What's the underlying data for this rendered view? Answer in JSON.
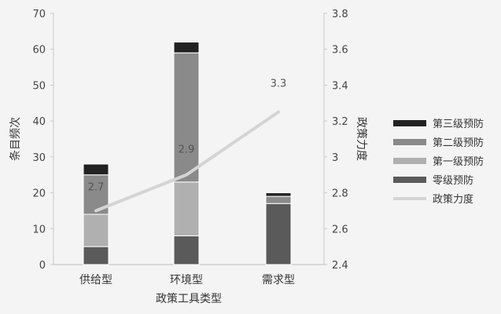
{
  "chart_data": {
    "type": "bar",
    "categories": [
      "供给型",
      "环境型",
      "需求型"
    ],
    "xlabel": "政策工具类型",
    "ylabel_left": "条目频次",
    "ylabel_right": "政策力度",
    "ylim_left": [
      0,
      70
    ],
    "yticks_left": [
      0,
      10,
      20,
      30,
      40,
      50,
      60,
      70
    ],
    "ylim_right": [
      2.4,
      3.8
    ],
    "yticks_right": [
      "2.4",
      "2.6",
      "2.8",
      "3",
      "3.2",
      "3.4",
      "3.6",
      "3.8"
    ],
    "stacked": true,
    "grid": false,
    "legend_position": "right",
    "series": [
      {
        "name": "零级预防",
        "values": [
          5,
          8,
          17
        ],
        "color": "#5a5a5a"
      },
      {
        "name": "第一级预防",
        "values": [
          9,
          15,
          0
        ],
        "color": "#b0b0b0"
      },
      {
        "name": "第二级预防",
        "values": [
          11,
          36,
          2
        ],
        "color": "#8a8a8a"
      },
      {
        "name": "第三级预防",
        "values": [
          3,
          3,
          1
        ],
        "color": "#222222"
      }
    ],
    "line_series": {
      "name": "政策力度",
      "axis": "right",
      "values": [
        2.7,
        2.9,
        3.25
      ],
      "labels": [
        "2.7",
        "2.9",
        "3.3"
      ],
      "color": "#d4d4d4"
    },
    "legend_order": [
      "第三级预防",
      "第二级预防",
      "第一级预防",
      "零级预防",
      "政策力度"
    ]
  }
}
